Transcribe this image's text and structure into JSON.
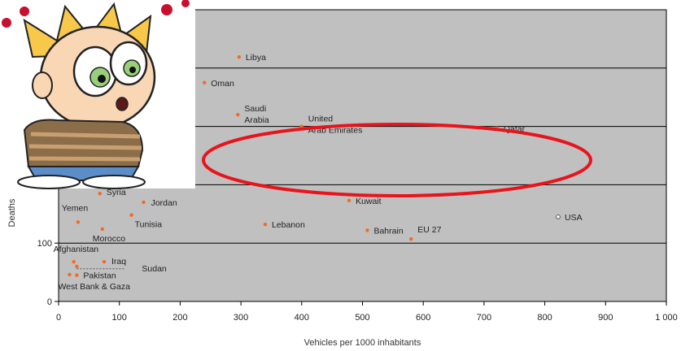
{
  "chart_data": {
    "type": "scatter",
    "title": "",
    "xlabel": "Vehicles per 1000 inhabitants",
    "ylabel": "Deaths",
    "xlim": [
      0,
      1000
    ],
    "ylim": [
      0,
      500
    ],
    "x_ticks": [
      0,
      100,
      200,
      300,
      400,
      500,
      600,
      700,
      800,
      900,
      1000
    ],
    "x_tick_labels": [
      "0",
      "100",
      "200",
      "300",
      "400",
      "500",
      "600",
      "700",
      "800",
      "900",
      "1 000"
    ],
    "y_ticks": [
      0,
      100
    ],
    "y_tick_labels": [
      "0",
      "100"
    ],
    "grid": "horizontal",
    "plot_background": "#c0c0c0",
    "point_color": "#f26b21",
    "highlight_color": "#e8141b",
    "points": [
      {
        "label": "Libya",
        "x": 297,
        "y": 419
      },
      {
        "label": "Oman",
        "x": 240,
        "y": 375
      },
      {
        "label": "Saudi Arabia",
        "x": 295,
        "y": 320
      },
      {
        "label": "United Arab Emirates",
        "x": 400,
        "y": 300
      },
      {
        "label": "Qatar",
        "x": 720,
        "y": 297
      },
      {
        "label": "Syria",
        "x": 68,
        "y": 185
      },
      {
        "label": "Jordan",
        "x": 140,
        "y": 170
      },
      {
        "label": "Kuwait",
        "x": 478,
        "y": 173
      },
      {
        "label": "Yemen",
        "x": 32,
        "y": 136
      },
      {
        "label": "Tunisia",
        "x": 120,
        "y": 148
      },
      {
        "label": "Lebanon",
        "x": 340,
        "y": 132
      },
      {
        "label": "Morocco",
        "x": 72,
        "y": 124
      },
      {
        "label": "Bahrain",
        "x": 508,
        "y": 122
      },
      {
        "label": "USA",
        "x": 822,
        "y": 145
      },
      {
        "label": "EU 27",
        "x": 580,
        "y": 107
      },
      {
        "label": "Afghanistan",
        "x": 25,
        "y": 68
      },
      {
        "label": "Iraq",
        "x": 75,
        "y": 68
      },
      {
        "label": "Sudan",
        "x": 30,
        "y": 60
      },
      {
        "label": "Pakistan",
        "x": 30,
        "y": 45
      },
      {
        "label": "West Bank & Gaza",
        "x": 18,
        "y": 46
      }
    ],
    "highlighted": [
      "Saudi Arabia",
      "United Arab Emirates",
      "Qatar"
    ]
  },
  "decoration": {
    "cartoon": "confused-boy-cartoon",
    "highlight": "red-ellipse"
  }
}
